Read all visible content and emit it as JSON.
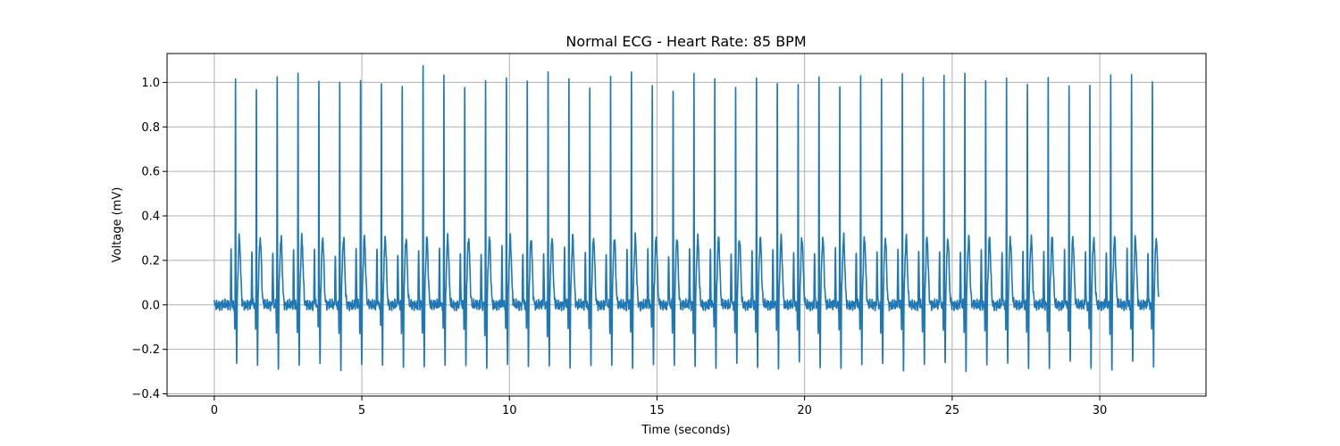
{
  "chart_data": {
    "type": "line",
    "title": "Normal ECG - Heart Rate: 85 BPM",
    "xlabel": "Time (seconds)",
    "ylabel": "Voltage (mV)",
    "xlim": [
      -1.6,
      33.6
    ],
    "ylim": [
      -0.41,
      1.13
    ],
    "x_ticks": [
      0,
      5,
      10,
      15,
      20,
      25,
      30
    ],
    "y_ticks": [
      -0.4,
      -0.2,
      0.0,
      0.2,
      0.4,
      0.6,
      0.8,
      1.0
    ],
    "x_tick_labels": [
      "0",
      "5",
      "10",
      "15",
      "20",
      "25",
      "30"
    ],
    "y_tick_labels": [
      "−0.4",
      "−0.2",
      "0.0",
      "0.2",
      "0.4",
      "0.6",
      "0.8",
      "1.0"
    ],
    "grid": true,
    "line_color": "#1f77b4",
    "series": [
      {
        "name": "",
        "x_start": 0,
        "x_end": 32,
        "baseline_end": 0.55,
        "beat_interval": 0.706,
        "r_peak_offset": 0.17,
        "t_wave_offset": 0.5,
        "s_wave_offset": 0.21,
        "r_peak_amplitudes": [
          1.0,
          1.0,
          1.02,
          1.03,
          1.03,
          1.0,
          1.0,
          1.0,
          1.0,
          1.06,
          1.04,
          1.0,
          0.99,
          1.02,
          1.03,
          1.04,
          1.01,
          1.0,
          1.02,
          1.04,
          1.0,
          0.97,
          1.03,
          1.02,
          1.0,
          1.0,
          1.01,
          1.0,
          1.02,
          0.99,
          1.03,
          1.03,
          1.03,
          1.03,
          1.04,
          1.04,
          1.01,
          1.02,
          1.0,
          1.02,
          0.99,
          1.0,
          1.03,
          1.03,
          1.02,
          1.02
        ],
        "t_wave_amplitude": 0.3,
        "s_wave_depth": -0.3
      }
    ]
  }
}
